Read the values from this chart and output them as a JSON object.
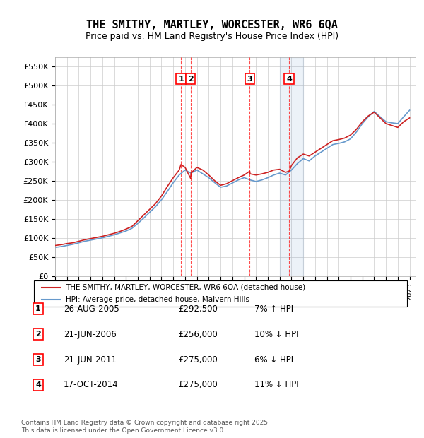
{
  "title": "THE SMITHY, MARTLEY, WORCESTER, WR6 6QA",
  "subtitle": "Price paid vs. HM Land Registry's House Price Index (HPI)",
  "xlabel": "",
  "ylabel": "",
  "ylim": [
    0,
    575000
  ],
  "yticks": [
    0,
    50000,
    100000,
    150000,
    200000,
    250000,
    300000,
    350000,
    400000,
    450000,
    500000,
    550000
  ],
  "ytick_labels": [
    "£0",
    "£50K",
    "£100K",
    "£150K",
    "£200K",
    "£250K",
    "£300K",
    "£350K",
    "£400K",
    "£450K",
    "£500K",
    "£550K"
  ],
  "xlim_start": 1995.0,
  "xlim_end": 2025.5,
  "red_line_label": "THE SMITHY, MARTLEY, WORCESTER, WR6 6QA (detached house)",
  "blue_line_label": "HPI: Average price, detached house, Malvern Hills",
  "background_color": "#ffffff",
  "grid_color": "#cccccc",
  "transactions": [
    {
      "num": 1,
      "date": "26-AUG-2005",
      "price": 292500,
      "pct": "7%",
      "dir": "↑",
      "x": 2005.65
    },
    {
      "num": 2,
      "date": "21-JUN-2006",
      "price": 256000,
      "pct": "10%",
      "dir": "↓",
      "x": 2006.47
    },
    {
      "num": 3,
      "date": "21-JUN-2011",
      "price": 275000,
      "pct": "6%",
      "dir": "↓",
      "x": 2011.47
    },
    {
      "num": 4,
      "date": "17-OCT-2014",
      "price": 275000,
      "pct": "11%",
      "dir": "↓",
      "x": 2014.8
    }
  ],
  "footnote": "Contains HM Land Registry data © Crown copyright and database right 2025.\nThis data is licensed under the Open Government Licence v3.0.",
  "red_x": [
    1995.0,
    1995.5,
    1996.0,
    1996.5,
    1997.0,
    1997.5,
    1998.0,
    1998.5,
    1999.0,
    1999.5,
    2000.0,
    2000.5,
    2001.0,
    2001.5,
    2002.0,
    2002.5,
    2003.0,
    2003.5,
    2004.0,
    2004.5,
    2005.0,
    2005.5,
    2005.65,
    2006.0,
    2006.47,
    2006.5,
    2007.0,
    2007.5,
    2008.0,
    2008.5,
    2009.0,
    2009.5,
    2010.0,
    2010.5,
    2011.0,
    2011.47,
    2011.5,
    2012.0,
    2012.5,
    2013.0,
    2013.5,
    2014.0,
    2014.5,
    2014.8,
    2015.0,
    2015.5,
    2016.0,
    2016.5,
    2017.0,
    2017.5,
    2018.0,
    2018.5,
    2019.0,
    2019.5,
    2020.0,
    2020.5,
    2021.0,
    2021.5,
    2022.0,
    2022.5,
    2023.0,
    2023.5,
    2024.0,
    2024.5,
    2025.0
  ],
  "red_y": [
    80000,
    82000,
    85000,
    87000,
    91000,
    95000,
    98000,
    101000,
    104000,
    108000,
    112000,
    117000,
    123000,
    130000,
    145000,
    160000,
    175000,
    190000,
    210000,
    235000,
    258000,
    278000,
    292500,
    285000,
    256000,
    270000,
    285000,
    278000,
    265000,
    250000,
    238000,
    242000,
    250000,
    258000,
    265000,
    275000,
    268000,
    265000,
    268000,
    272000,
    278000,
    280000,
    272000,
    275000,
    290000,
    310000,
    320000,
    315000,
    325000,
    335000,
    345000,
    355000,
    358000,
    362000,
    370000,
    385000,
    405000,
    420000,
    430000,
    415000,
    400000,
    395000,
    390000,
    405000,
    415000
  ],
  "blue_x": [
    1995.0,
    1995.5,
    1996.0,
    1996.5,
    1997.0,
    1997.5,
    1998.0,
    1998.5,
    1999.0,
    1999.5,
    2000.0,
    2000.5,
    2001.0,
    2001.5,
    2002.0,
    2002.5,
    2003.0,
    2003.5,
    2004.0,
    2004.5,
    2005.0,
    2005.5,
    2006.0,
    2006.5,
    2007.0,
    2007.5,
    2008.0,
    2008.5,
    2009.0,
    2009.5,
    2010.0,
    2010.5,
    2011.0,
    2011.5,
    2012.0,
    2012.5,
    2013.0,
    2013.5,
    2014.0,
    2014.5,
    2015.0,
    2015.5,
    2016.0,
    2016.5,
    2017.0,
    2017.5,
    2018.0,
    2018.5,
    2019.0,
    2019.5,
    2020.0,
    2020.5,
    2021.0,
    2021.5,
    2022.0,
    2022.5,
    2023.0,
    2023.5,
    2024.0,
    2024.5,
    2025.0
  ],
  "blue_y": [
    75000,
    77000,
    80000,
    83000,
    87000,
    91000,
    94000,
    97000,
    100000,
    104000,
    108000,
    113000,
    118000,
    125000,
    138000,
    152000,
    167000,
    182000,
    200000,
    222000,
    245000,
    265000,
    278000,
    270000,
    278000,
    268000,
    258000,
    245000,
    233000,
    236000,
    244000,
    252000,
    258000,
    252000,
    248000,
    252000,
    258000,
    265000,
    270000,
    265000,
    278000,
    295000,
    308000,
    302000,
    315000,
    325000,
    335000,
    345000,
    348000,
    352000,
    360000,
    378000,
    400000,
    418000,
    432000,
    418000,
    405000,
    402000,
    400000,
    418000,
    435000
  ],
  "shade_x1": 2014.0,
  "shade_x2": 2016.0
}
